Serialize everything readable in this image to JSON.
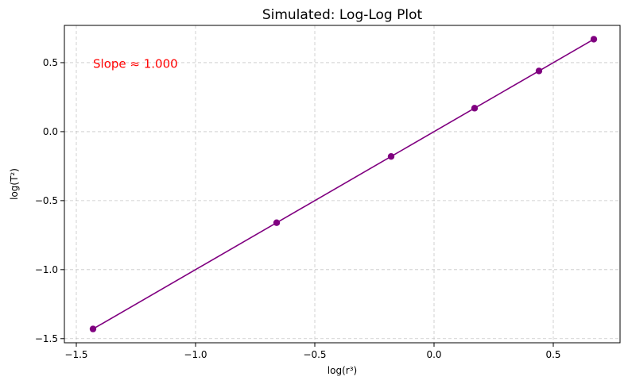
{
  "chart_data": {
    "type": "line",
    "title": "Simulated: Log-Log Plot",
    "xlabel": "log(r³)",
    "ylabel": "log(T²)",
    "xlim": [
      -1.55,
      0.78
    ],
    "ylim": [
      -1.53,
      0.77
    ],
    "xticks": [
      -1.5,
      -1.0,
      -0.5,
      0.0,
      0.5
    ],
    "xtick_labels": [
      "−1.5",
      "−1.0",
      "−0.5",
      "0.0",
      "0.5"
    ],
    "yticks": [
      -1.5,
      -1.0,
      -0.5,
      0.0,
      0.5
    ],
    "ytick_labels": [
      "−1.5",
      "−1.0",
      "−0.5",
      "0.0",
      "0.5"
    ],
    "grid": true,
    "series": [
      {
        "color": "#800080",
        "marker": "circle",
        "x": [
          -1.43,
          -0.66,
          -0.18,
          0.17,
          0.44,
          0.67
        ],
        "y": [
          -1.43,
          -0.66,
          -0.18,
          0.17,
          0.44,
          0.67
        ]
      }
    ],
    "annotations": [
      {
        "text": "Slope ≈ 1.000",
        "x": -1.43,
        "y": 0.49,
        "color": "#ff0000"
      }
    ]
  }
}
